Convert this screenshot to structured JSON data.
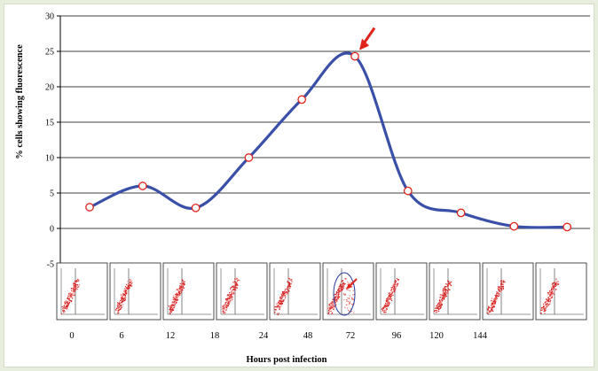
{
  "chart_data": {
    "type": "line",
    "title": "",
    "xlabel": "Hours post infection",
    "ylabel": "% cells showing fluorescence",
    "categories": [
      "0",
      "6",
      "12",
      "18",
      "24",
      "48",
      "72",
      "96",
      "120",
      "144"
    ],
    "series": [
      {
        "name": "",
        "values": [
          3,
          6,
          2.9,
          10,
          18.2,
          24.3,
          5.3,
          2.2,
          0.3,
          0.2
        ]
      }
    ],
    "ylim": [
      -5,
      30
    ],
    "yticks": [
      -5,
      0,
      5,
      10,
      15,
      20,
      25,
      30
    ],
    "grid": "horizontal",
    "line_color": "#3a4fa8",
    "marker_fill": "#ffffff",
    "marker_edge": "#e0241b",
    "annotations": [
      {
        "type": "arrow",
        "target_index": 5,
        "color": "#e0241b"
      }
    ],
    "insets": {
      "type": "flow-cytometry-dot-plots",
      "count": 10,
      "highlighted_index": 5,
      "highlight_color": "#2a3d9c"
    }
  }
}
